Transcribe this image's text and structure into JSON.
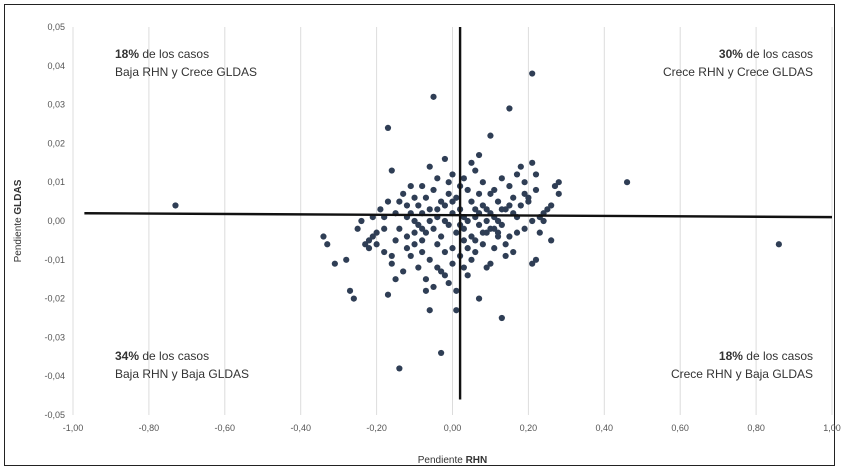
{
  "chart_data": {
    "type": "scatter",
    "xlabel_prefix": "Pendiente ",
    "xlabel_bold": "RHN",
    "ylabel_prefix": "Pendiente ",
    "ylabel_bold": "GLDAS",
    "xlim": [
      -1.0,
      1.0
    ],
    "ylim": [
      -0.05,
      0.05
    ],
    "x_ticks": [
      "-1,00",
      "-0,80",
      "-0,60",
      "-0,40",
      "-0,20",
      "0,00",
      "0,20",
      "0,40",
      "0,60",
      "0,80",
      "1,00"
    ],
    "y_ticks": [
      "0,05",
      "0,04",
      "0,03",
      "0,02",
      "0,01",
      "0,00",
      "-0,01",
      "-0,02",
      "-0,03",
      "-0,04",
      "-0,05"
    ],
    "grid": "vertical",
    "marker_color": "#2f3e55",
    "annotations": [
      {
        "bold": "18%",
        "line1": " de los casos",
        "line2": "Baja RHN y Crece GLDAS",
        "position": "top-left"
      },
      {
        "bold": "30%",
        "line1": " de los casos",
        "line2": "Crece RHN y Crece GLDAS",
        "position": "top-right"
      },
      {
        "bold": "34%",
        "line1": " de los casos",
        "line2": "Baja RHN y Baja GLDAS",
        "position": "bottom-left"
      },
      {
        "bold": "18%",
        "line1": " de los casos",
        "line2": "Crece RHN y Baja GLDAS",
        "position": "bottom-right"
      }
    ],
    "divider_lines": [
      {
        "x1": -0.97,
        "y1": 0.002,
        "x2": 1.0,
        "y2": 0.001
      },
      {
        "x1": 0.02,
        "y1": 0.05,
        "x2": 0.02,
        "y2": -0.046
      }
    ],
    "points": [
      [
        -0.73,
        0.004
      ],
      [
        0.86,
        -0.006
      ],
      [
        0.46,
        0.01
      ],
      [
        0.21,
        0.038
      ],
      [
        -0.05,
        0.032
      ],
      [
        0.15,
        0.029
      ],
      [
        -0.17,
        0.024
      ],
      [
        0.1,
        0.022
      ],
      [
        0.21,
        0.015
      ],
      [
        0.07,
        0.017
      ],
      [
        0.28,
        0.01
      ],
      [
        0.27,
        0.009
      ],
      [
        0.28,
        0.007
      ],
      [
        0.25,
        0.003
      ],
      [
        0.23,
        0.001
      ],
      [
        0.26,
        -0.005
      ],
      [
        0.22,
        -0.01
      ],
      [
        0.21,
        -0.011
      ],
      [
        0.13,
        -0.025
      ],
      [
        0.07,
        -0.02
      ],
      [
        0.01,
        -0.023
      ],
      [
        -0.03,
        -0.034
      ],
      [
        -0.14,
        -0.038
      ],
      [
        -0.06,
        -0.023
      ],
      [
        -0.17,
        -0.019
      ],
      [
        -0.15,
        -0.015
      ],
      [
        -0.26,
        -0.02
      ],
      [
        -0.27,
        -0.018
      ],
      [
        -0.31,
        -0.011
      ],
      [
        -0.34,
        -0.004
      ],
      [
        -0.33,
        -0.006
      ],
      [
        -0.28,
        -0.01
      ],
      [
        -0.24,
        0.0
      ],
      [
        -0.22,
        -0.005
      ],
      [
        -0.2,
        -0.003
      ],
      [
        -0.18,
        0.001
      ],
      [
        -0.16,
        0.013
      ],
      [
        -0.12,
        0.004
      ],
      [
        -0.1,
        0.006
      ],
      [
        -0.08,
        0.009
      ],
      [
        -0.06,
        0.014
      ],
      [
        -0.04,
        0.011
      ],
      [
        -0.02,
        0.016
      ],
      [
        0.0,
        0.012
      ],
      [
        0.02,
        0.009
      ],
      [
        0.04,
        0.008
      ],
      [
        0.06,
        0.013
      ],
      [
        0.08,
        0.01
      ],
      [
        0.1,
        0.007
      ],
      [
        0.12,
        0.005
      ],
      [
        0.14,
        0.003
      ],
      [
        0.16,
        0.002
      ],
      [
        0.18,
        0.004
      ],
      [
        0.2,
        0.006
      ],
      [
        0.22,
        0.008
      ],
      [
        0.24,
        0.002
      ],
      [
        -0.14,
        -0.002
      ],
      [
        -0.12,
        -0.004
      ],
      [
        -0.1,
        -0.006
      ],
      [
        -0.08,
        -0.008
      ],
      [
        -0.06,
        -0.01
      ],
      [
        -0.04,
        -0.012
      ],
      [
        -0.02,
        -0.014
      ],
      [
        0.0,
        -0.011
      ],
      [
        0.02,
        -0.009
      ],
      [
        0.04,
        -0.007
      ],
      [
        0.06,
        -0.005
      ],
      [
        0.08,
        -0.003
      ],
      [
        0.1,
        -0.002
      ],
      [
        0.12,
        -0.004
      ],
      [
        0.14,
        -0.006
      ],
      [
        0.16,
        -0.008
      ],
      [
        -0.1,
        0.0
      ],
      [
        -0.08,
        0.002
      ],
      [
        -0.06,
        0.003
      ],
      [
        -0.04,
        0.001
      ],
      [
        -0.02,
        0.004
      ],
      [
        0.0,
        0.002
      ],
      [
        0.02,
        0.003
      ],
      [
        0.04,
        0.0
      ],
      [
        0.06,
        0.001
      ],
      [
        0.08,
        0.004
      ],
      [
        0.1,
        0.002
      ],
      [
        0.12,
        0.0
      ],
      [
        -0.09,
        -0.001
      ],
      [
        -0.07,
        -0.003
      ],
      [
        -0.05,
        -0.002
      ],
      [
        -0.03,
        -0.004
      ],
      [
        -0.01,
        -0.001
      ],
      [
        0.01,
        -0.003
      ],
      [
        0.03,
        -0.002
      ],
      [
        0.05,
        -0.004
      ],
      [
        0.07,
        -0.001
      ],
      [
        0.09,
        -0.003
      ],
      [
        0.11,
        -0.002
      ],
      [
        0.13,
        -0.001
      ],
      [
        -0.2,
        -0.006
      ],
      [
        -0.18,
        -0.008
      ],
      [
        -0.16,
        -0.011
      ],
      [
        -0.13,
        -0.013
      ],
      [
        -0.11,
        -0.009
      ],
      [
        -0.09,
        -0.012
      ],
      [
        -0.07,
        -0.015
      ],
      [
        -0.05,
        -0.017
      ],
      [
        -0.03,
        -0.013
      ],
      [
        -0.01,
        -0.016
      ],
      [
        0.01,
        -0.018
      ],
      [
        0.03,
        -0.012
      ],
      [
        0.05,
        -0.01
      ],
      [
        0.09,
        -0.012
      ],
      [
        0.11,
        -0.007
      ],
      [
        0.15,
        -0.004
      ],
      [
        -0.19,
        0.003
      ],
      [
        -0.17,
        0.005
      ],
      [
        -0.15,
        0.002
      ],
      [
        -0.13,
        0.007
      ],
      [
        -0.11,
        0.009
      ],
      [
        -0.09,
        0.004
      ],
      [
        -0.07,
        0.006
      ],
      [
        -0.05,
        0.008
      ],
      [
        -0.03,
        0.005
      ],
      [
        -0.01,
        0.007
      ],
      [
        0.01,
        0.006
      ],
      [
        0.03,
        0.011
      ],
      [
        0.05,
        0.005
      ],
      [
        0.07,
        0.007
      ],
      [
        0.09,
        0.003
      ],
      [
        0.11,
        0.008
      ],
      [
        0.13,
        0.011
      ],
      [
        0.15,
        0.009
      ],
      [
        0.17,
        0.012
      ],
      [
        0.19,
        0.01
      ],
      [
        0.18,
        0.014
      ],
      [
        0.2,
        0.005
      ],
      [
        0.22,
        0.012
      ],
      [
        0.23,
        -0.003
      ],
      [
        -0.23,
        -0.006
      ],
      [
        -0.21,
        -0.004
      ],
      [
        -0.25,
        -0.002
      ],
      [
        -0.12,
        -0.007
      ],
      [
        -0.08,
        -0.005
      ],
      [
        -0.04,
        -0.006
      ],
      [
        0.0,
        -0.007
      ],
      [
        0.04,
        -0.014
      ],
      [
        -0.02,
        -0.008
      ],
      [
        0.06,
        -0.008
      ],
      [
        0.1,
        -0.011
      ],
      [
        0.14,
        -0.009
      ],
      [
        0.17,
        -0.003
      ],
      [
        0.19,
        -0.002
      ],
      [
        0.21,
        0.0
      ],
      [
        0.17,
        0.001
      ],
      [
        -0.06,
        0.0
      ],
      [
        -0.02,
        0.0
      ],
      [
        0.03,
        0.001
      ],
      [
        0.07,
        0.002
      ],
      [
        0.11,
        0.001
      ],
      [
        0.15,
        0.004
      ],
      [
        -0.11,
        0.002
      ],
      [
        -0.15,
        -0.005
      ],
      [
        -0.18,
        -0.002
      ],
      [
        -0.21,
        0.001
      ],
      [
        -0.14,
        0.005
      ],
      [
        -0.01,
        0.01
      ],
      [
        0.05,
        0.015
      ],
      [
        -0.07,
        -0.018
      ],
      [
        0.03,
        -0.005
      ],
      [
        0.08,
        -0.006
      ],
      [
        0.12,
        -0.003
      ],
      [
        0.16,
        0.006
      ],
      [
        0.19,
        0.007
      ],
      [
        0.24,
        0.0
      ],
      [
        0.26,
        0.004
      ],
      [
        -0.22,
        -0.007
      ],
      [
        -0.16,
        -0.009
      ],
      [
        -0.1,
        -0.003
      ],
      [
        -0.04,
        0.003
      ],
      [
        0.0,
        0.005
      ],
      [
        0.02,
        -0.001
      ],
      [
        0.06,
        0.003
      ],
      [
        0.09,
        0.0
      ],
      [
        0.13,
        0.003
      ],
      [
        -0.08,
        -0.002
      ],
      [
        -0.12,
        0.001
      ]
    ]
  }
}
